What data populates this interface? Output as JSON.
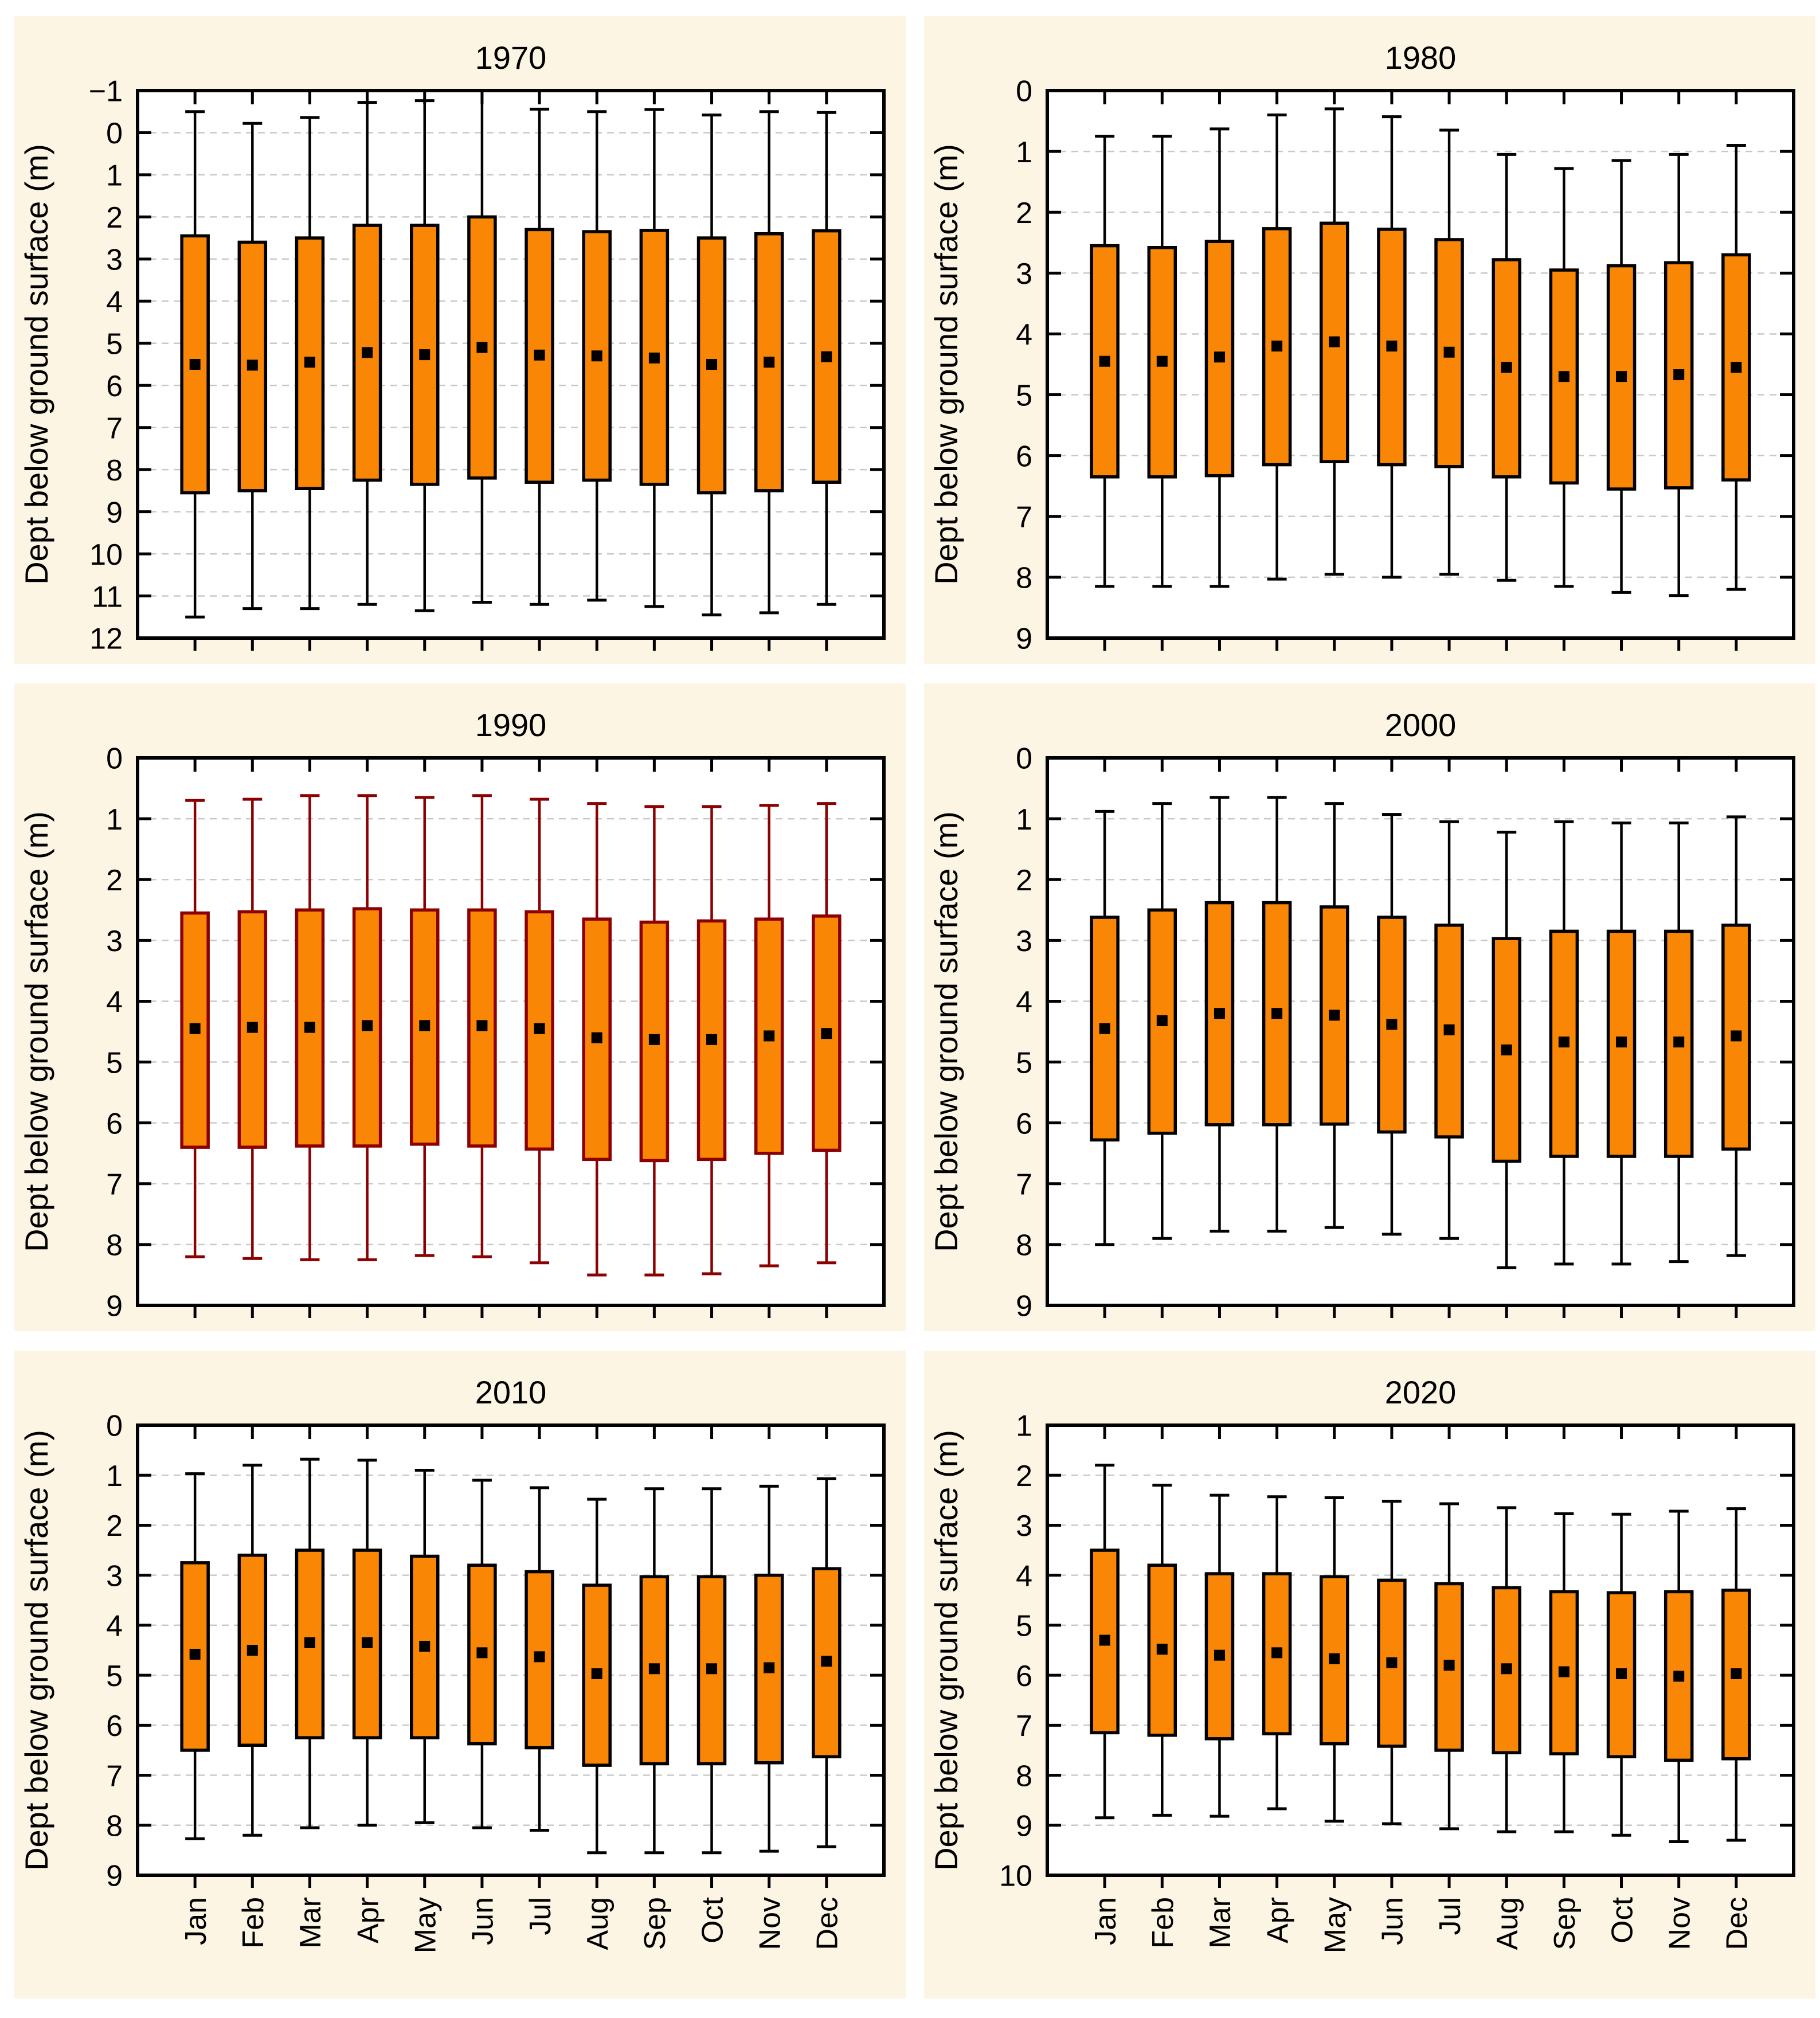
{
  "figure": {
    "ylabel": "Dept below ground surface (m)",
    "months": [
      "Jan",
      "Feb",
      "Mar",
      "Apr",
      "May",
      "Jun",
      "Jul",
      "Aug",
      "Sep",
      "Oct",
      "Nov",
      "Dec"
    ],
    "colors": {
      "page_bg": "#ffffff",
      "panel_bg": "#FCF5E3",
      "plot_bg": "#ffffff",
      "grid": "#c9c9c9",
      "axis": "#000000",
      "box_fill": "#FA8605",
      "box_border_default": "#000000",
      "box_border_1990": "#8B0000",
      "mean_marker": "#000000"
    }
  },
  "chart_data": [
    {
      "type": "box",
      "title": "1970",
      "ylim": [
        -1,
        12
      ],
      "ytick_step": 1,
      "month_labels": false,
      "fill": "#FA8605",
      "border": "#000000",
      "whisker": "#000000",
      "low": [
        -0.5,
        -0.22,
        -0.36,
        -0.72,
        -0.76,
        -1.0,
        -0.56,
        -0.5,
        -0.55,
        -0.42,
        -0.5,
        -0.48
      ],
      "q1": [
        2.45,
        2.6,
        2.5,
        2.2,
        2.2,
        2.0,
        2.3,
        2.35,
        2.32,
        2.5,
        2.4,
        2.33
      ],
      "mean": [
        5.5,
        5.52,
        5.45,
        5.22,
        5.27,
        5.1,
        5.28,
        5.3,
        5.35,
        5.5,
        5.45,
        5.32
      ],
      "q3": [
        8.55,
        8.5,
        8.45,
        8.25,
        8.35,
        8.2,
        8.3,
        8.25,
        8.35,
        8.55,
        8.5,
        8.3
      ],
      "high": [
        11.5,
        11.3,
        11.3,
        11.2,
        11.35,
        11.15,
        11.2,
        11.1,
        11.25,
        11.45,
        11.4,
        11.2
      ]
    },
    {
      "type": "box",
      "title": "1980",
      "ylim": [
        0,
        9
      ],
      "ytick_step": 1,
      "month_labels": false,
      "fill": "#FA8605",
      "border": "#000000",
      "whisker": "#000000",
      "low": [
        0.75,
        0.75,
        0.63,
        0.4,
        0.3,
        0.43,
        0.65,
        1.05,
        1.28,
        1.15,
        1.05,
        0.9
      ],
      "q1": [
        2.55,
        2.58,
        2.48,
        2.27,
        2.18,
        2.28,
        2.45,
        2.78,
        2.95,
        2.88,
        2.83,
        2.7
      ],
      "mean": [
        4.45,
        4.45,
        4.38,
        4.2,
        4.13,
        4.2,
        4.3,
        4.55,
        4.7,
        4.7,
        4.67,
        4.55
      ],
      "q3": [
        6.35,
        6.35,
        6.33,
        6.15,
        6.1,
        6.15,
        6.18,
        6.35,
        6.45,
        6.55,
        6.53,
        6.4
      ],
      "high": [
        8.15,
        8.15,
        8.15,
        8.03,
        7.95,
        8.0,
        7.95,
        8.05,
        8.15,
        8.25,
        8.3,
        8.2
      ]
    },
    {
      "type": "box",
      "title": "1990",
      "ylim": [
        0,
        9
      ],
      "ytick_step": 1,
      "month_labels": false,
      "fill": "#FA8605",
      "border": "#8B0000",
      "whisker": "#8B0000",
      "low": [
        0.7,
        0.68,
        0.62,
        0.62,
        0.65,
        0.62,
        0.68,
        0.75,
        0.8,
        0.8,
        0.78,
        0.75
      ],
      "q1": [
        2.55,
        2.53,
        2.5,
        2.48,
        2.5,
        2.5,
        2.53,
        2.65,
        2.7,
        2.68,
        2.65,
        2.6
      ],
      "mean": [
        4.45,
        4.43,
        4.43,
        4.4,
        4.4,
        4.4,
        4.45,
        4.6,
        4.63,
        4.63,
        4.57,
        4.53
      ],
      "q3": [
        6.4,
        6.4,
        6.38,
        6.38,
        6.35,
        6.38,
        6.43,
        6.6,
        6.62,
        6.6,
        6.5,
        6.45
      ],
      "high": [
        8.2,
        8.23,
        8.25,
        8.25,
        8.18,
        8.2,
        8.3,
        8.5,
        8.5,
        8.48,
        8.35,
        8.3
      ]
    },
    {
      "type": "box",
      "title": "2000",
      "ylim": [
        0,
        9
      ],
      "ytick_step": 1,
      "month_labels": false,
      "fill": "#FA8605",
      "border": "#000000",
      "whisker": "#000000",
      "low": [
        0.88,
        0.75,
        0.65,
        0.65,
        0.75,
        0.93,
        1.05,
        1.22,
        1.05,
        1.07,
        1.07,
        0.97
      ],
      "q1": [
        2.62,
        2.5,
        2.38,
        2.38,
        2.45,
        2.62,
        2.75,
        2.97,
        2.85,
        2.85,
        2.85,
        2.75
      ],
      "mean": [
        4.45,
        4.32,
        4.2,
        4.2,
        4.23,
        4.38,
        4.47,
        4.8,
        4.67,
        4.67,
        4.67,
        4.57
      ],
      "q3": [
        6.28,
        6.17,
        6.03,
        6.03,
        6.02,
        6.15,
        6.23,
        6.63,
        6.55,
        6.55,
        6.55,
        6.43
      ],
      "high": [
        8.0,
        7.9,
        7.78,
        7.78,
        7.72,
        7.83,
        7.9,
        8.38,
        8.32,
        8.32,
        8.28,
        8.18
      ]
    },
    {
      "type": "box",
      "title": "2010",
      "ylim": [
        0,
        9
      ],
      "ytick_step": 1,
      "month_labels": true,
      "fill": "#FA8605",
      "border": "#000000",
      "whisker": "#000000",
      "low": [
        0.97,
        0.8,
        0.68,
        0.7,
        0.9,
        1.1,
        1.25,
        1.48,
        1.27,
        1.27,
        1.22,
        1.07
      ],
      "q1": [
        2.75,
        2.6,
        2.5,
        2.5,
        2.62,
        2.8,
        2.93,
        3.2,
        3.03,
        3.03,
        3.0,
        2.87
      ],
      "mean": [
        4.58,
        4.5,
        4.35,
        4.35,
        4.42,
        4.55,
        4.63,
        4.97,
        4.87,
        4.87,
        4.85,
        4.72
      ],
      "q3": [
        6.5,
        6.4,
        6.25,
        6.25,
        6.25,
        6.37,
        6.45,
        6.8,
        6.77,
        6.77,
        6.75,
        6.63
      ],
      "high": [
        8.27,
        8.2,
        8.05,
        8.0,
        7.95,
        8.05,
        8.1,
        8.55,
        8.55,
        8.55,
        8.52,
        8.43
      ]
    },
    {
      "type": "box",
      "title": "2020",
      "ylim": [
        1,
        10
      ],
      "ytick_step": 1,
      "month_labels": true,
      "fill": "#FA8605",
      "border": "#000000",
      "whisker": "#000000",
      "low": [
        1.8,
        2.2,
        2.4,
        2.43,
        2.45,
        2.52,
        2.57,
        2.65,
        2.77,
        2.78,
        2.72,
        2.67
      ],
      "q1": [
        3.5,
        3.8,
        3.97,
        3.97,
        4.03,
        4.1,
        4.17,
        4.25,
        4.33,
        4.35,
        4.33,
        4.3
      ],
      "mean": [
        5.3,
        5.48,
        5.6,
        5.55,
        5.67,
        5.75,
        5.8,
        5.87,
        5.93,
        5.97,
        6.02,
        5.97
      ],
      "q3": [
        7.15,
        7.2,
        7.27,
        7.17,
        7.37,
        7.42,
        7.5,
        7.55,
        7.57,
        7.63,
        7.7,
        7.67
      ],
      "high": [
        8.85,
        8.8,
        8.82,
        8.67,
        8.92,
        8.97,
        9.07,
        9.13,
        9.13,
        9.2,
        9.33,
        9.3
      ]
    }
  ]
}
